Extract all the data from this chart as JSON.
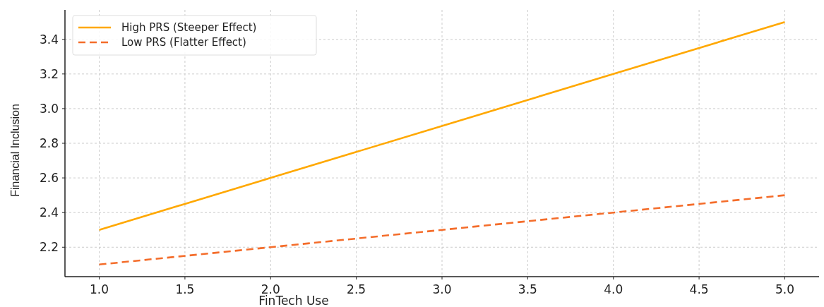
{
  "chart_data": {
    "type": "line",
    "xlabel": "FinTech Use",
    "ylabel": "Financial Inclusion",
    "x": [
      1.0,
      2.0,
      3.0,
      4.0,
      5.0
    ],
    "series": [
      {
        "name": "High PRS (Steeper Effect)",
        "color": "#ffa800",
        "values": [
          2.3,
          2.6,
          2.9,
          3.2,
          3.5
        ],
        "line_style": "solid"
      },
      {
        "name": "Low PRS (Flatter Effect)",
        "color": "#f46d2b",
        "values": [
          2.1,
          2.2,
          2.3,
          2.4,
          2.5
        ],
        "line_style": "dashed"
      }
    ],
    "xlim": [
      0.8,
      5.2
    ],
    "xticks": [
      {
        "value": 1,
        "label": "1.0"
      },
      {
        "value": 1.5,
        "label": "1.5"
      },
      {
        "value": 2,
        "label": "2.0"
      },
      {
        "value": 2.5,
        "label": "2.5"
      },
      {
        "value": 3,
        "label": "3.0"
      },
      {
        "value": 3.5,
        "label": "3.5"
      },
      {
        "value": 4,
        "label": "4.0"
      },
      {
        "value": 4.5,
        "label": "4.5"
      },
      {
        "value": 5,
        "label": "5.0"
      }
    ],
    "ylim": [
      2.03,
      3.57
    ],
    "yticks": [
      {
        "value": 2.2,
        "label": "2.2"
      },
      {
        "value": 2.4,
        "label": "2.4"
      },
      {
        "value": 2.6,
        "label": "2.6"
      },
      {
        "value": 2.8,
        "label": "2.8"
      },
      {
        "value": 3.0,
        "label": "3.0"
      },
      {
        "value": 3.2,
        "label": "3.2"
      },
      {
        "value": 3.4,
        "label": "3.4"
      }
    ],
    "grid": true,
    "legend": "top left",
    "marker": "none"
  }
}
